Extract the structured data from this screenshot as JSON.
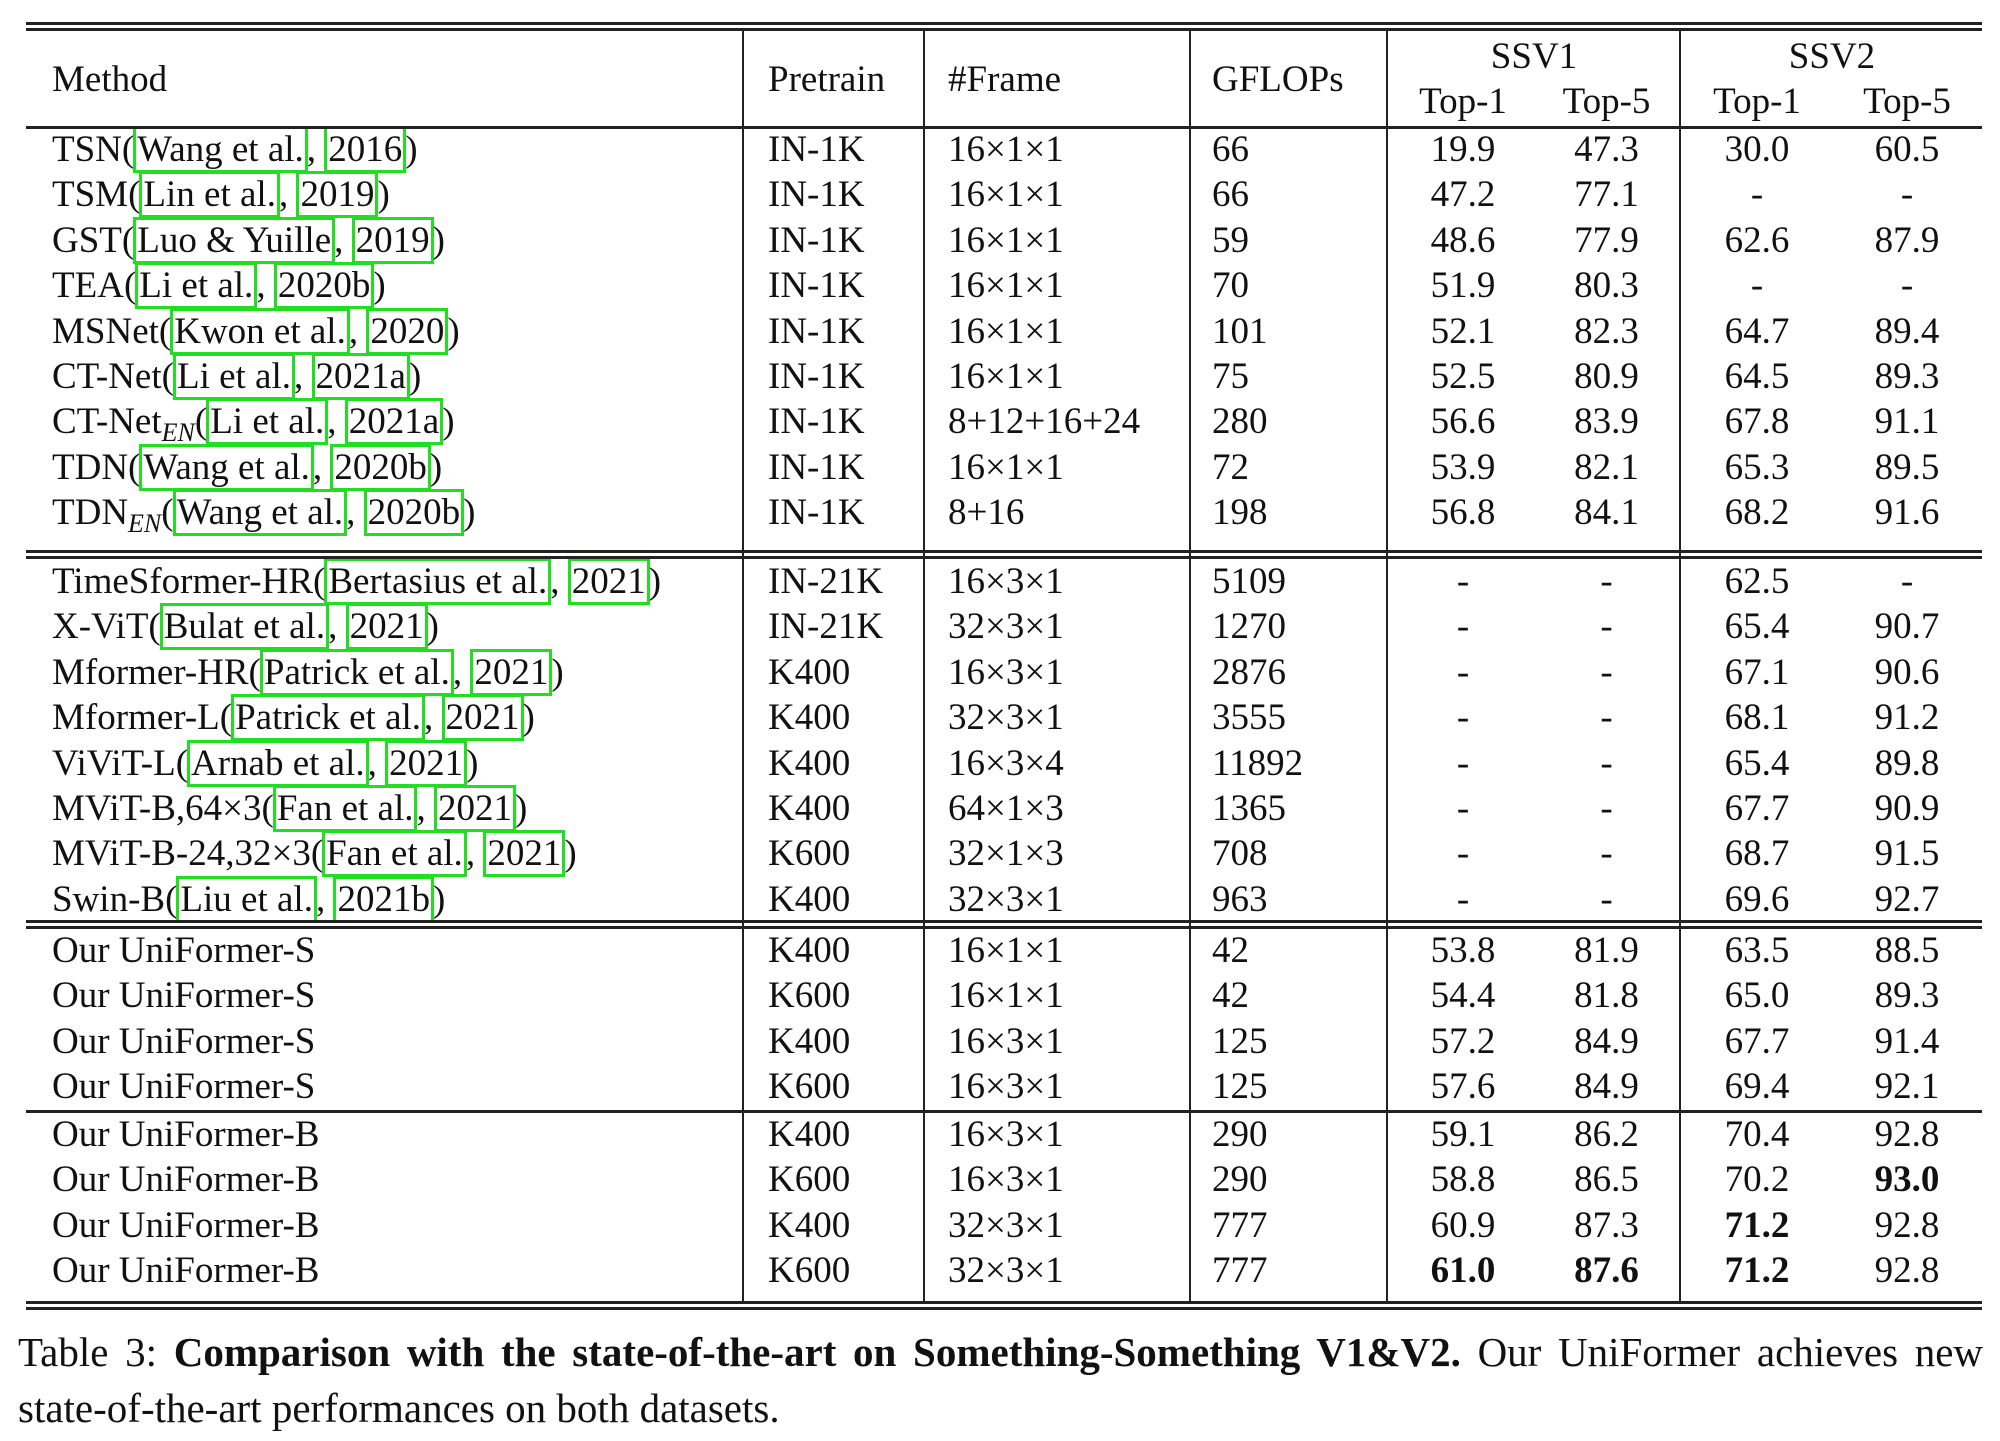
{
  "table": {
    "headers": {
      "method": "Method",
      "pretrain": "Pretrain",
      "frame": "#Frame",
      "gflops": "GFLOPs",
      "ssv1": "SSV1",
      "ssv2": "SSV2",
      "top1": "Top-1",
      "top5": "Top-5"
    },
    "groups": [
      {
        "rows": [
          {
            "name": "TSN",
            "sub": "",
            "cite": [
              "Wang et al.",
              "2016"
            ],
            "pretrain": "IN-1K",
            "frame": "16×1×1",
            "gflops": "66",
            "v1t1": "19.9",
            "v1t5": "47.3",
            "v2t1": "30.0",
            "v2t5": "60.5"
          },
          {
            "name": "TSM",
            "sub": "",
            "cite": [
              "Lin et al.",
              "2019"
            ],
            "pretrain": "IN-1K",
            "frame": "16×1×1",
            "gflops": "66",
            "v1t1": "47.2",
            "v1t5": "77.1",
            "v2t1": "-",
            "v2t5": "-"
          },
          {
            "name": "GST",
            "sub": "",
            "cite": [
              "Luo & Yuille",
              "2019"
            ],
            "pretrain": "IN-1K",
            "frame": "16×1×1",
            "gflops": "59",
            "v1t1": "48.6",
            "v1t5": "77.9",
            "v2t1": "62.6",
            "v2t5": "87.9"
          },
          {
            "name": "TEA",
            "sub": "",
            "cite": [
              "Li et al.",
              "2020b"
            ],
            "pretrain": "IN-1K",
            "frame": "16×1×1",
            "gflops": "70",
            "v1t1": "51.9",
            "v1t5": "80.3",
            "v2t1": "-",
            "v2t5": "-"
          },
          {
            "name": "MSNet",
            "sub": "",
            "cite": [
              "Kwon et al.",
              "2020"
            ],
            "pretrain": "IN-1K",
            "frame": "16×1×1",
            "gflops": "101",
            "v1t1": "52.1",
            "v1t5": "82.3",
            "v2t1": "64.7",
            "v2t5": "89.4"
          },
          {
            "name": "CT-Net",
            "sub": "",
            "cite": [
              "Li et al.",
              "2021a"
            ],
            "pretrain": "IN-1K",
            "frame": "16×1×1",
            "gflops": "75",
            "v1t1": "52.5",
            "v1t5": "80.9",
            "v2t1": "64.5",
            "v2t5": "89.3"
          },
          {
            "name": "CT-Net",
            "sub": "EN",
            "cite": [
              "Li et al.",
              "2021a"
            ],
            "pretrain": "IN-1K",
            "frame": "8+12+16+24",
            "gflops": "280",
            "v1t1": "56.6",
            "v1t5": "83.9",
            "v2t1": "67.8",
            "v2t5": "91.1"
          },
          {
            "name": "TDN",
            "sub": "",
            "cite": [
              "Wang et al.",
              "2020b"
            ],
            "pretrain": "IN-1K",
            "frame": "16×1×1",
            "gflops": "72",
            "v1t1": "53.9",
            "v1t5": "82.1",
            "v2t1": "65.3",
            "v2t5": "89.5"
          },
          {
            "name": "TDN",
            "sub": "EN",
            "cite": [
              "Wang et al.",
              "2020b"
            ],
            "pretrain": "IN-1K",
            "frame": "8+16",
            "gflops": "198",
            "v1t1": "56.8",
            "v1t5": "84.1",
            "v2t1": "68.2",
            "v2t5": "91.6"
          }
        ]
      },
      {
        "rows": [
          {
            "name": "TimeSformer-HR",
            "sub": "",
            "cite": [
              "Bertasius et al.",
              "2021"
            ],
            "pretrain": "IN-21K",
            "frame": "16×3×1",
            "gflops": "5109",
            "v1t1": "-",
            "v1t5": "-",
            "v2t1": "62.5",
            "v2t5": "-"
          },
          {
            "name": "X-ViT",
            "sub": "",
            "cite": [
              "Bulat et al.",
              "2021"
            ],
            "pretrain": "IN-21K",
            "frame": "32×3×1",
            "gflops": "1270",
            "v1t1": "-",
            "v1t5": "-",
            "v2t1": "65.4",
            "v2t5": "90.7"
          },
          {
            "name": "Mformer-HR",
            "sub": "",
            "cite": [
              "Patrick et al.",
              "2021"
            ],
            "pretrain": "K400",
            "frame": "16×3×1",
            "gflops": "2876",
            "v1t1": "-",
            "v1t5": "-",
            "v2t1": "67.1",
            "v2t5": "90.6"
          },
          {
            "name": "Mformer-L",
            "sub": "",
            "cite": [
              "Patrick et al.",
              "2021"
            ],
            "pretrain": "K400",
            "frame": "32×3×1",
            "gflops": "3555",
            "v1t1": "-",
            "v1t5": "-",
            "v2t1": "68.1",
            "v2t5": "91.2"
          },
          {
            "name": "ViViT-L",
            "sub": "",
            "cite": [
              "Arnab et al.",
              "2021"
            ],
            "pretrain": "K400",
            "frame": "16×3×4",
            "gflops": "11892",
            "v1t1": "-",
            "v1t5": "-",
            "v2t1": "65.4",
            "v2t5": "89.8"
          },
          {
            "name": "MViT-B,64×3",
            "sub": "",
            "cite": [
              "Fan et al.",
              "2021"
            ],
            "pretrain": "K400",
            "frame": "64×1×3",
            "gflops": "1365",
            "v1t1": "-",
            "v1t5": "-",
            "v2t1": "67.7",
            "v2t5": "90.9"
          },
          {
            "name": "MViT-B-24,32×3",
            "sub": "",
            "cite": [
              "Fan et al.",
              "2021"
            ],
            "pretrain": "K600",
            "frame": "32×1×3",
            "gflops": "708",
            "v1t1": "-",
            "v1t5": "-",
            "v2t1": "68.7",
            "v2t5": "91.5"
          },
          {
            "name": "Swin-B",
            "sub": "",
            "cite": [
              "Liu et al.",
              "2021b"
            ],
            "pretrain": "K400",
            "frame": "32×3×1",
            "gflops": "963",
            "v1t1": "-",
            "v1t5": "-",
            "v2t1": "69.6",
            "v2t5": "92.7"
          }
        ]
      },
      {
        "rows": [
          {
            "name": "Our UniFormer-S",
            "sub": "",
            "cite": [],
            "pretrain": "K400",
            "frame": "16×1×1",
            "gflops": "42",
            "v1t1": "53.8",
            "v1t5": "81.9",
            "v2t1": "63.5",
            "v2t5": "88.5"
          },
          {
            "name": "Our UniFormer-S",
            "sub": "",
            "cite": [],
            "pretrain": "K600",
            "frame": "16×1×1",
            "gflops": "42",
            "v1t1": "54.4",
            "v1t5": "81.8",
            "v2t1": "65.0",
            "v2t5": "89.3"
          },
          {
            "name": "Our UniFormer-S",
            "sub": "",
            "cite": [],
            "pretrain": "K400",
            "frame": "16×3×1",
            "gflops": "125",
            "v1t1": "57.2",
            "v1t5": "84.9",
            "v2t1": "67.7",
            "v2t5": "91.4"
          },
          {
            "name": "Our UniFormer-S",
            "sub": "",
            "cite": [],
            "pretrain": "K600",
            "frame": "16×3×1",
            "gflops": "125",
            "v1t1": "57.6",
            "v1t5": "84.9",
            "v2t1": "69.4",
            "v2t5": "92.1"
          }
        ]
      },
      {
        "rows": [
          {
            "name": "Our UniFormer-B",
            "sub": "",
            "cite": [],
            "pretrain": "K400",
            "frame": "16×3×1",
            "gflops": "290",
            "v1t1": "59.1",
            "v1t5": "86.2",
            "v2t1": "70.4",
            "v2t5": "92.8"
          },
          {
            "name": "Our UniFormer-B",
            "sub": "",
            "cite": [],
            "pretrain": "K600",
            "frame": "16×3×1",
            "gflops": "290",
            "v1t1": "58.8",
            "v1t5": "86.5",
            "v2t1": "70.2",
            "v2t5": "93.0",
            "bold": [
              "v2t5"
            ]
          },
          {
            "name": "Our UniFormer-B",
            "sub": "",
            "cite": [],
            "pretrain": "K400",
            "frame": "32×3×1",
            "gflops": "777",
            "v1t1": "60.9",
            "v1t5": "87.3",
            "v2t1": "71.2",
            "v2t5": "92.8",
            "bold": [
              "v2t1"
            ]
          },
          {
            "name": "Our UniFormer-B",
            "sub": "",
            "cite": [],
            "pretrain": "K600",
            "frame": "32×3×1",
            "gflops": "777",
            "v1t1": "61.0",
            "v1t5": "87.6",
            "v2t1": "71.2",
            "v2t5": "92.8",
            "bold": [
              "v1t1",
              "v1t5",
              "v2t1"
            ]
          }
        ]
      }
    ]
  },
  "caption": {
    "label": "Table 3:",
    "bold": "Comparison with the state-of-the-art on Something-Something V1&V2.",
    "rest": "Our UniFormer achieves new state-of-the-art performances on both datasets."
  },
  "colors": {
    "citation_box": "#22dd22",
    "rules": "#222222"
  }
}
